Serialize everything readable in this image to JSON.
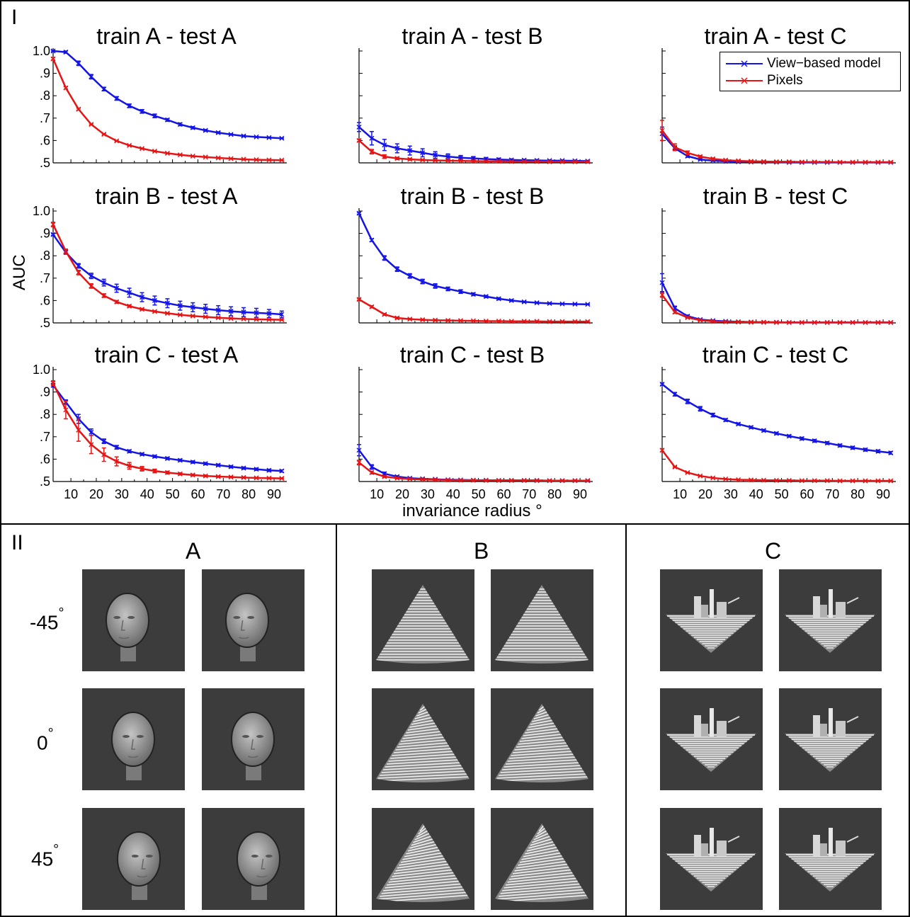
{
  "panels": {
    "top_label": "I",
    "bottom_label": "II"
  },
  "chart_data": {
    "type": "line",
    "ylabel": "AUC",
    "xlabel": "invariance radius °",
    "ylim": [
      0.5,
      1.0
    ],
    "xlim": [
      3,
      95
    ],
    "yticks": [
      "1.0",
      ".9",
      ".8",
      ".7",
      ".6",
      ".5"
    ],
    "xticks": [
      "10",
      "20",
      "30",
      "40",
      "50",
      "60",
      "70",
      "80",
      "90"
    ],
    "legend": {
      "placement": "top-right",
      "entries": [
        "View−based model",
        "Pixels"
      ]
    },
    "colors": {
      "view": "#1414e6",
      "pixels": "#e61414"
    },
    "x": [
      3,
      8,
      13,
      18,
      23,
      28,
      33,
      38,
      43,
      48,
      53,
      58,
      63,
      68,
      73,
      78,
      83,
      88,
      93
    ],
    "plots": [
      {
        "title": "train A - test A",
        "series": [
          {
            "name": "View−based model",
            "values": [
              1.0,
              0.995,
              0.945,
              0.885,
              0.83,
              0.788,
              0.755,
              0.73,
              0.71,
              0.692,
              0.672,
              0.657,
              0.645,
              0.635,
              0.627,
              0.62,
              0.616,
              0.613,
              0.61
            ],
            "err": [
              0.003,
              0.005,
              0.01,
              0.01,
              0.008,
              0.008,
              0.008,
              0.008,
              0.008,
              0.006,
              0.006,
              0.005,
              0.004,
              0.004,
              0.003,
              0.003,
              0.002,
              0.002,
              0.002
            ]
          },
          {
            "name": "Pixels",
            "values": [
              0.965,
              0.835,
              0.74,
              0.672,
              0.628,
              0.598,
              0.578,
              0.564,
              0.552,
              0.543,
              0.536,
              0.53,
              0.526,
              0.522,
              0.519,
              0.516,
              0.514,
              0.513,
              0.512
            ],
            "err": [
              0.005,
              0.005,
              0.004,
              0.003,
              0.003,
              0.002,
              0.002,
              0.002,
              0.002,
              0.001,
              0.001,
              0.001,
              0.001,
              0.001,
              0.001,
              0.001,
              0.001,
              0.001,
              0.001
            ]
          }
        ]
      },
      {
        "title": "train A - test B",
        "series": [
          {
            "name": "View−based model",
            "values": [
              0.66,
              0.61,
              0.58,
              0.565,
              0.555,
              0.545,
              0.535,
              0.528,
              0.523,
              0.52,
              0.517,
              0.515,
              0.513,
              0.512,
              0.511,
              0.51,
              0.51,
              0.509,
              0.508
            ],
            "err": [
              0.02,
              0.03,
              0.025,
              0.02,
              0.02,
              0.018,
              0.015,
              0.012,
              0.01,
              0.008,
              0.007,
              0.006,
              0.005,
              0.004,
              0.004,
              0.003,
              0.003,
              0.003,
              0.003
            ]
          },
          {
            "name": "Pixels",
            "values": [
              0.6,
              0.55,
              0.528,
              0.52,
              0.516,
              0.513,
              0.511,
              0.51,
              0.509,
              0.508,
              0.507,
              0.507,
              0.506,
              0.506,
              0.506,
              0.505,
              0.505,
              0.505,
              0.505
            ],
            "err": [
              0.005,
              0.01,
              0.008,
              0.005,
              0.004,
              0.003,
              0.003,
              0.003,
              0.002,
              0.002,
              0.002,
              0.002,
              0.002,
              0.002,
              0.002,
              0.002,
              0.002,
              0.002,
              0.002
            ]
          }
        ]
      },
      {
        "title": "train A - test C",
        "series": [
          {
            "name": "View−based model",
            "values": [
              0.63,
              0.565,
              0.53,
              0.515,
              0.51,
              0.507,
              0.505,
              0.504,
              0.503,
              0.503,
              0.502,
              0.502,
              0.502,
              0.502,
              0.502,
              0.502,
              0.502,
              0.502,
              0.502
            ],
            "err": [
              0.03,
              0.01,
              0.005,
              0.003,
              0.002,
              0.002,
              0.002,
              0.001,
              0.001,
              0.001,
              0.001,
              0.001,
              0.001,
              0.001,
              0.001,
              0.001,
              0.001,
              0.001,
              0.001
            ]
          },
          {
            "name": "Pixels",
            "values": [
              0.645,
              0.57,
              0.545,
              0.528,
              0.518,
              0.512,
              0.509,
              0.507,
              0.506,
              0.505,
              0.505,
              0.504,
              0.504,
              0.504,
              0.503,
              0.503,
              0.503,
              0.503,
              0.503
            ],
            "err": [
              0.045,
              0.015,
              0.008,
              0.005,
              0.004,
              0.003,
              0.002,
              0.002,
              0.002,
              0.001,
              0.001,
              0.001,
              0.001,
              0.001,
              0.001,
              0.001,
              0.001,
              0.001,
              0.001
            ]
          }
        ]
      },
      {
        "title": "train B - test A",
        "series": [
          {
            "name": "View−based model",
            "values": [
              0.895,
              0.815,
              0.755,
              0.71,
              0.68,
              0.655,
              0.635,
              0.615,
              0.6,
              0.588,
              0.577,
              0.57,
              0.563,
              0.557,
              0.552,
              0.548,
              0.545,
              0.542,
              0.538
            ],
            "err": [
              0.004,
              0.008,
              0.01,
              0.012,
              0.015,
              0.018,
              0.02,
              0.02,
              0.02,
              0.02,
              0.02,
              0.02,
              0.02,
              0.02,
              0.02,
              0.02,
              0.02,
              0.018,
              0.015
            ]
          },
          {
            "name": "Pixels",
            "values": [
              0.94,
              0.82,
              0.725,
              0.665,
              0.622,
              0.594,
              0.575,
              0.561,
              0.551,
              0.543,
              0.536,
              0.531,
              0.527,
              0.523,
              0.52,
              0.518,
              0.516,
              0.515,
              0.514
            ],
            "err": [
              0.01,
              0.01,
              0.01,
              0.01,
              0.008,
              0.006,
              0.005,
              0.004,
              0.003,
              0.003,
              0.002,
              0.002,
              0.002,
              0.002,
              0.001,
              0.001,
              0.001,
              0.001,
              0.001
            ]
          }
        ]
      },
      {
        "title": "train B - test B",
        "series": [
          {
            "name": "View−based model",
            "values": [
              0.99,
              0.87,
              0.79,
              0.74,
              0.71,
              0.685,
              0.665,
              0.652,
              0.64,
              0.628,
              0.618,
              0.608,
              0.6,
              0.594,
              0.59,
              0.587,
              0.585,
              0.584,
              0.583
            ],
            "err": [
              0.004,
              0.006,
              0.01,
              0.01,
              0.01,
              0.01,
              0.01,
              0.008,
              0.008,
              0.006,
              0.005,
              0.005,
              0.004,
              0.003,
              0.003,
              0.003,
              0.002,
              0.002,
              0.002
            ]
          },
          {
            "name": "Pixels",
            "values": [
              0.605,
              0.572,
              0.538,
              0.522,
              0.517,
              0.514,
              0.512,
              0.511,
              0.51,
              0.509,
              0.508,
              0.508,
              0.507,
              0.507,
              0.507,
              0.506,
              0.506,
              0.506,
              0.506
            ],
            "err": [
              0.004,
              0.005,
              0.004,
              0.004,
              0.003,
              0.003,
              0.003,
              0.003,
              0.002,
              0.002,
              0.002,
              0.002,
              0.002,
              0.002,
              0.002,
              0.002,
              0.002,
              0.002,
              0.002
            ]
          }
        ]
      },
      {
        "title": "train B - test C",
        "series": [
          {
            "name": "View−based model",
            "values": [
              0.68,
              0.565,
              0.53,
              0.515,
              0.51,
              0.507,
              0.505,
              0.504,
              0.503,
              0.503,
              0.502,
              0.502,
              0.502,
              0.502,
              0.502,
              0.502,
              0.502,
              0.502,
              0.502
            ],
            "err": [
              0.04,
              0.01,
              0.005,
              0.003,
              0.002,
              0.002,
              0.002,
              0.001,
              0.001,
              0.001,
              0.001,
              0.001,
              0.001,
              0.001,
              0.001,
              0.001,
              0.001,
              0.001,
              0.001
            ]
          },
          {
            "name": "Pixels",
            "values": [
              0.625,
              0.548,
              0.524,
              0.512,
              0.507,
              0.505,
              0.504,
              0.503,
              0.503,
              0.502,
              0.502,
              0.502,
              0.502,
              0.502,
              0.502,
              0.502,
              0.502,
              0.502,
              0.502
            ],
            "err": [
              0.01,
              0.005,
              0.003,
              0.002,
              0.002,
              0.001,
              0.001,
              0.001,
              0.001,
              0.001,
              0.001,
              0.001,
              0.001,
              0.001,
              0.001,
              0.001,
              0.001,
              0.001,
              0.001
            ]
          }
        ]
      },
      {
        "title": "train C - test A",
        "series": [
          {
            "name": "View−based model",
            "values": [
              0.93,
              0.855,
              0.78,
              0.72,
              0.68,
              0.653,
              0.635,
              0.622,
              0.612,
              0.603,
              0.595,
              0.587,
              0.58,
              0.573,
              0.566,
              0.56,
              0.555,
              0.55,
              0.547
            ],
            "err": [
              0.008,
              0.01,
              0.02,
              0.015,
              0.01,
              0.008,
              0.006,
              0.005,
              0.005,
              0.005,
              0.005,
              0.005,
              0.005,
              0.005,
              0.005,
              0.005,
              0.005,
              0.005,
              0.005
            ]
          },
          {
            "name": "Pixels",
            "values": [
              0.94,
              0.82,
              0.73,
              0.665,
              0.62,
              0.59,
              0.57,
              0.557,
              0.547,
              0.54,
              0.534,
              0.529,
              0.525,
              0.522,
              0.52,
              0.518,
              0.516,
              0.515,
              0.514
            ],
            "err": [
              0.01,
              0.04,
              0.05,
              0.04,
              0.03,
              0.02,
              0.015,
              0.01,
              0.008,
              0.006,
              0.005,
              0.004,
              0.004,
              0.003,
              0.003,
              0.003,
              0.002,
              0.002,
              0.002
            ]
          }
        ]
      },
      {
        "title": "train C - test B",
        "series": [
          {
            "name": "View−based model",
            "values": [
              0.64,
              0.565,
              0.535,
              0.522,
              0.515,
              0.512,
              0.51,
              0.508,
              0.507,
              0.506,
              0.506,
              0.505,
              0.505,
              0.505,
              0.505,
              0.504,
              0.504,
              0.504,
              0.504
            ],
            "err": [
              0.025,
              0.01,
              0.007,
              0.004,
              0.003,
              0.003,
              0.002,
              0.002,
              0.002,
              0.002,
              0.002,
              0.002,
              0.002,
              0.002,
              0.002,
              0.002,
              0.002,
              0.002,
              0.002
            ]
          },
          {
            "name": "Pixels",
            "values": [
              0.585,
              0.54,
              0.522,
              0.515,
              0.511,
              0.509,
              0.508,
              0.507,
              0.506,
              0.506,
              0.505,
              0.505,
              0.505,
              0.505,
              0.504,
              0.504,
              0.504,
              0.504,
              0.504
            ],
            "err": [
              0.01,
              0.006,
              0.004,
              0.003,
              0.002,
              0.002,
              0.002,
              0.002,
              0.002,
              0.002,
              0.002,
              0.002,
              0.002,
              0.002,
              0.002,
              0.002,
              0.002,
              0.002,
              0.002
            ]
          }
        ]
      },
      {
        "title": "train C - test C",
        "series": [
          {
            "name": "View−based model",
            "values": [
              0.935,
              0.89,
              0.858,
              0.825,
              0.797,
              0.775,
              0.757,
              0.742,
              0.728,
              0.715,
              0.703,
              0.692,
              0.682,
              0.672,
              0.661,
              0.651,
              0.642,
              0.635,
              0.628
            ],
            "err": [
              0.005,
              0.008,
              0.01,
              0.01,
              0.008,
              0.006,
              0.005,
              0.005,
              0.005,
              0.005,
              0.005,
              0.006,
              0.006,
              0.006,
              0.006,
              0.006,
              0.006,
              0.006,
              0.006
            ]
          },
          {
            "name": "Pixels",
            "values": [
              0.64,
              0.565,
              0.54,
              0.525,
              0.516,
              0.511,
              0.508,
              0.507,
              0.506,
              0.505,
              0.505,
              0.504,
              0.504,
              0.504,
              0.503,
              0.503,
              0.503,
              0.503,
              0.503
            ],
            "err": [
              0.006,
              0.003,
              0.002,
              0.002,
              0.001,
              0.001,
              0.001,
              0.001,
              0.001,
              0.001,
              0.001,
              0.001,
              0.001,
              0.001,
              0.001,
              0.001,
              0.001,
              0.001,
              0.001
            ]
          }
        ]
      }
    ]
  },
  "stimuli": {
    "columns": [
      "A",
      "B",
      "C"
    ],
    "angles": [
      "-45",
      "0",
      "45"
    ],
    "degree_symbol": "°",
    "kinds": [
      "face",
      "cone",
      "terrain"
    ],
    "background": "#3c3c3c"
  }
}
